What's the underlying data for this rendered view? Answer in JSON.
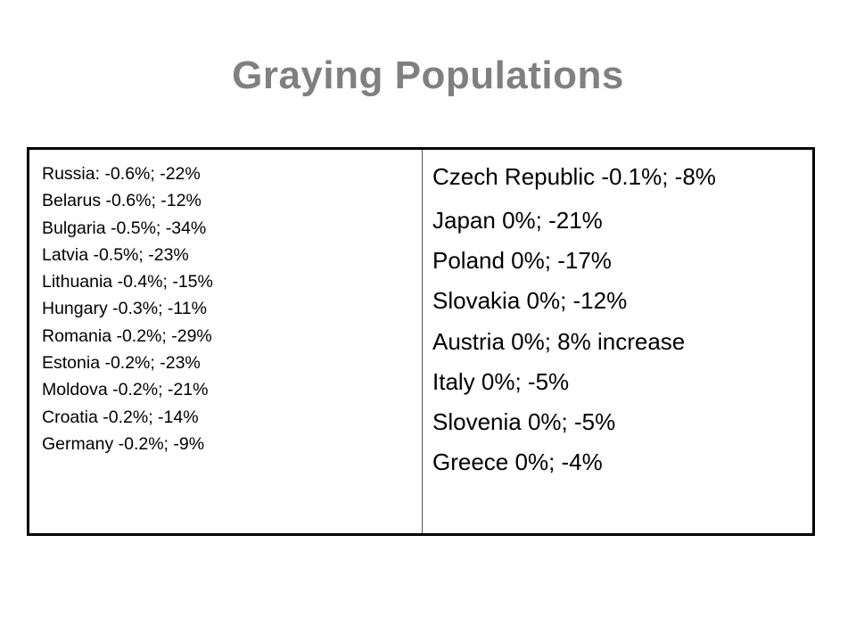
{
  "slide": {
    "title": "Graying Populations"
  },
  "table": {
    "left_column": [
      "Russia: -0.6%; -22%",
      "Belarus -0.6%; -12%",
      "Bulgaria -0.5%; -34%",
      "Latvia -0.5%; -23%",
      "Lithuania -0.4%; -15%",
      "Hungary -0.3%; -11%",
      "Romania -0.2%; -29%",
      "Estonia -0.2%; -23%",
      "Moldova -0.2%; -21%",
      "Croatia -0.2%; -14%",
      "Germany -0.2%; -9%"
    ],
    "right_first": "Czech Republic  -0.1%; -8%",
    "right_column": [
      "Japan 0%; -21%",
      "Poland 0%; -17%",
      "Slovakia 0%; -12%",
      "Austria 0%; 8% increase",
      "Italy 0%; -5%",
      "Slovenia 0%; -5%",
      "Greece 0%; -4%"
    ]
  }
}
